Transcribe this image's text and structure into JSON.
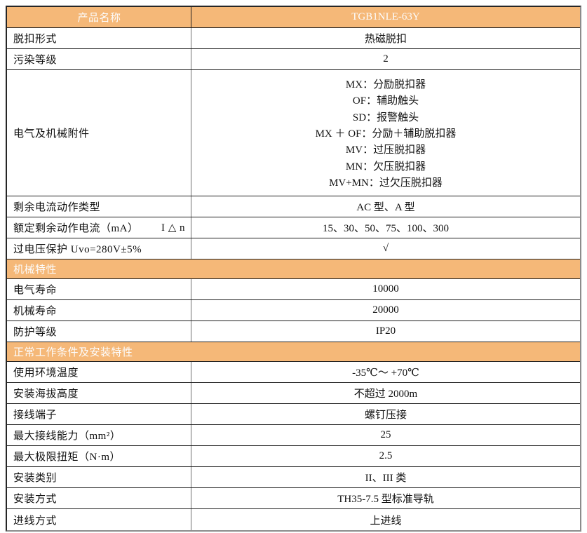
{
  "colors": {
    "header_bg": "#F5B878",
    "header_text": "#FCFCFC",
    "text": "#111111",
    "row_border": "#1F1F1F",
    "divider": "#6E6E6E",
    "border_dark": "#262626",
    "border_shadow": "#8C8C8C"
  },
  "table": {
    "header": {
      "label": "产品名称",
      "value": "TGB1NLE-63Y"
    },
    "rows_top": [
      {
        "label": "脱扣形式",
        "value": "热磁脱扣"
      },
      {
        "label": "污染等级",
        "value": "2"
      },
      {
        "label": "电气及机械附件",
        "value_lines": [
          "MX：分励脱扣器",
          "OF：辅助触头",
          "SD：报警触头",
          "MX ＋ OF：分励＋辅助脱扣器",
          "MV：过压脱扣器",
          "MN：欠压脱扣器",
          "MV+MN：过欠压脱扣器"
        ]
      },
      {
        "label": "剩余电流动作类型",
        "value": "AC 型、A 型"
      },
      {
        "label": "额定剩余动作电流（mA）",
        "label_suffix": "I △ n",
        "value": "15、30、50、75、100、300"
      },
      {
        "label": "过电压保护 Uvo=280V±5%",
        "value": "√"
      }
    ],
    "sections": [
      {
        "title": "机械特性",
        "rows": [
          {
            "label": "电气寿命",
            "value": "10000"
          },
          {
            "label": "机械寿命",
            "value": "20000"
          },
          {
            "label": "防护等级",
            "value": "IP20"
          }
        ]
      },
      {
        "title": "正常工作条件及安装特性",
        "rows": [
          {
            "label": "使用环境温度",
            "value": "-35℃～ +70℃"
          },
          {
            "label": "安装海拔高度",
            "value": "不超过 2000m"
          },
          {
            "label": "接线端子",
            "value": "螺钉压接"
          },
          {
            "label": "最大接线能力（mm²）",
            "value": "25"
          },
          {
            "label": "最大极限扭矩（N·m）",
            "value": "2.5"
          },
          {
            "label": "安装类别",
            "value": "II、III 类"
          },
          {
            "label": "安装方式",
            "value": "TH35-7.5 型标准导轨"
          },
          {
            "label": "进线方式",
            "value": "上进线"
          }
        ]
      }
    ]
  }
}
